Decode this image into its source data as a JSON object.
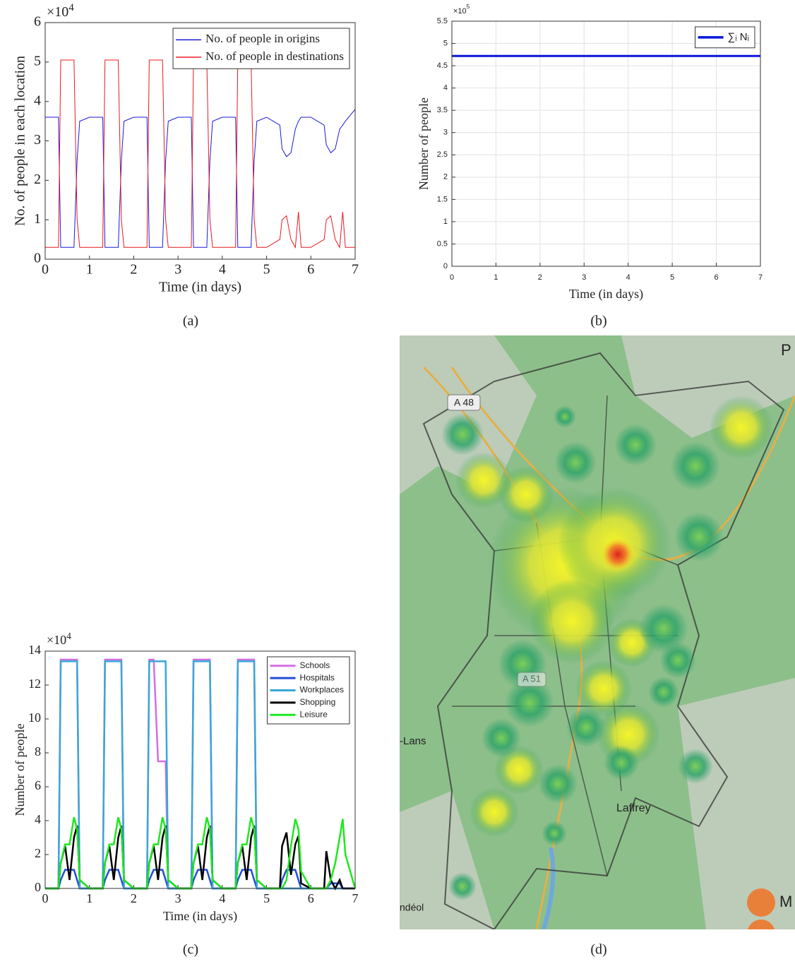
{
  "chart_data": [
    {
      "type": "line",
      "ylabel": "No. of people in each location",
      "xlabel": "Time (in days)",
      "y_multiplier": "×10",
      "y_exponent": "4",
      "legend": "top-right",
      "grid": false,
      "font": "serif",
      "x": [
        0,
        0.3,
        0.35,
        0.45,
        0.55,
        0.65,
        0.72,
        0.78,
        1,
        1.3,
        1.35,
        1.45,
        1.55,
        1.65,
        1.72,
        1.78,
        2,
        2.3,
        2.35,
        2.45,
        2.55,
        2.65,
        2.72,
        2.78,
        3,
        3.3,
        3.35,
        3.45,
        3.55,
        3.65,
        3.72,
        3.78,
        4,
        4.3,
        4.35,
        4.45,
        4.55,
        4.65,
        4.72,
        4.78,
        5,
        5.3,
        5.35,
        5.45,
        5.55,
        5.65,
        5.72,
        5.78,
        6,
        6.3,
        6.35,
        6.45,
        6.55,
        6.65,
        6.72,
        6.78,
        7
      ],
      "xlim": [
        0,
        7
      ],
      "ylim": [
        0,
        6
      ],
      "xticks": [
        0,
        1,
        2,
        3,
        4,
        5,
        6,
        7
      ],
      "yticks": [
        0,
        1,
        2,
        3,
        4,
        5,
        6
      ],
      "series": [
        {
          "name": "No. of people in origins",
          "color": "#1a1adf",
          "values": [
            3.6,
            3.6,
            0.3,
            0.3,
            0.3,
            0.3,
            2.5,
            3.5,
            3.6,
            3.6,
            0.3,
            0.3,
            0.3,
            0.3,
            2.5,
            3.5,
            3.6,
            3.6,
            0.3,
            0.3,
            0.3,
            0.3,
            2.5,
            3.5,
            3.6,
            3.6,
            0.3,
            0.3,
            0.3,
            0.3,
            2.5,
            3.5,
            3.6,
            3.6,
            0.3,
            0.3,
            0.3,
            0.3,
            2.5,
            3.5,
            3.6,
            3.4,
            2.8,
            2.6,
            2.7,
            3.3,
            3.5,
            3.6,
            3.6,
            3.4,
            2.9,
            2.7,
            2.8,
            3.3,
            3.4,
            3.5,
            3.8
          ]
        },
        {
          "name": "No. of people in destinations",
          "color": "#e8191f",
          "values": [
            0.3,
            0.3,
            5.05,
            5.05,
            5.05,
            5.05,
            1.0,
            0.3,
            0.3,
            0.3,
            5.05,
            5.05,
            5.05,
            5.05,
            1.0,
            0.3,
            0.3,
            0.3,
            5.05,
            5.05,
            5.05,
            5.05,
            1.0,
            0.3,
            0.3,
            0.3,
            5.05,
            5.05,
            5.05,
            5.05,
            1.0,
            0.3,
            0.3,
            0.3,
            5.05,
            5.05,
            5.05,
            5.05,
            1.0,
            0.3,
            0.3,
            0.5,
            1.0,
            1.1,
            0.5,
            0.3,
            1.2,
            0.3,
            0.3,
            0.5,
            1.0,
            1.1,
            0.5,
            0.3,
            1.2,
            0.3,
            0.3
          ]
        }
      ]
    },
    {
      "type": "line",
      "ylabel": "Number of people",
      "xlabel": "Time (in days)",
      "y_multiplier": "×10",
      "y_exponent": "5",
      "legend": "top-right",
      "grid": true,
      "font": "sans",
      "x": [
        0,
        7
      ],
      "xlim": [
        0,
        7
      ],
      "ylim": [
        0,
        5.5
      ],
      "xticks": [
        0,
        1,
        2,
        3,
        4,
        5,
        6,
        7
      ],
      "yticks": [
        0,
        0.5,
        1,
        1.5,
        2,
        2.5,
        3,
        3.5,
        4,
        4.5,
        5,
        5.5
      ],
      "series": [
        {
          "name": "∑ᵢ Nᵢ",
          "color": "#0b16d8",
          "values": [
            4.72,
            4.72
          ]
        }
      ]
    },
    {
      "type": "line",
      "ylabel": "Number of people",
      "xlabel": "Time (in days)",
      "y_multiplier": "×10",
      "y_exponent": "4",
      "legend": "top-right",
      "grid": false,
      "font": "serif",
      "x": [
        0,
        0.3,
        0.35,
        0.45,
        0.55,
        0.65,
        0.72,
        0.78,
        1,
        1.3,
        1.35,
        1.45,
        1.55,
        1.65,
        1.72,
        1.78,
        2,
        2.3,
        2.35,
        2.45,
        2.55,
        2.65,
        2.72,
        2.78,
        3,
        3.3,
        3.35,
        3.45,
        3.55,
        3.65,
        3.72,
        3.78,
        4,
        4.3,
        4.35,
        4.45,
        4.55,
        4.65,
        4.72,
        4.78,
        5,
        5.3,
        5.35,
        5.45,
        5.55,
        5.65,
        5.72,
        5.78,
        6,
        6.3,
        6.35,
        6.45,
        6.55,
        6.65,
        6.72,
        6.78,
        7
      ],
      "xlim": [
        0,
        7
      ],
      "ylim": [
        0,
        14
      ],
      "xticks": [
        0,
        1,
        2,
        3,
        4,
        5,
        6,
        7
      ],
      "yticks": [
        0,
        2,
        4,
        6,
        8,
        10,
        12,
        14
      ],
      "series": [
        {
          "name": "Schools",
          "color": "#d36fe0",
          "values": [
            0,
            0,
            13.5,
            13.5,
            13.5,
            13.5,
            13.5,
            0,
            0,
            0,
            13.5,
            13.5,
            13.5,
            13.5,
            13.5,
            0,
            0,
            0,
            13.5,
            13.5,
            7.5,
            7.5,
            7.5,
            0,
            0,
            0,
            13.5,
            13.5,
            13.5,
            13.5,
            13.5,
            0,
            0,
            0,
            13.5,
            13.5,
            13.5,
            13.5,
            13.5,
            0,
            0,
            0,
            0,
            0,
            0,
            0,
            0,
            0,
            0,
            0,
            0,
            0,
            0,
            0,
            0,
            0,
            0
          ]
        },
        {
          "name": "Hospitals",
          "color": "#1f4fd8",
          "values": [
            0,
            0,
            0.5,
            1.1,
            1.1,
            1.1,
            0.5,
            0,
            0,
            0,
            0.5,
            1.1,
            1.1,
            1.1,
            0.5,
            0,
            0,
            0,
            0.5,
            1.1,
            1.1,
            1.1,
            0.5,
            0,
            0,
            0,
            0.5,
            1.1,
            1.1,
            1.1,
            0.5,
            0,
            0,
            0,
            0.5,
            1.1,
            1.1,
            1.1,
            0.5,
            0,
            0,
            0,
            0.5,
            1.1,
            1.1,
            1.1,
            0.5,
            0,
            0,
            0,
            0,
            0.3,
            0.3,
            0.3,
            0,
            0,
            0
          ]
        },
        {
          "name": "Workplaces",
          "color": "#3aa6d6",
          "values": [
            0,
            0,
            13.4,
            13.4,
            13.4,
            13.4,
            13.4,
            0,
            0,
            0,
            13.4,
            13.4,
            13.4,
            13.4,
            13.4,
            0,
            0,
            0,
            13.4,
            13.4,
            13.4,
            13.4,
            13.4,
            0,
            0,
            0,
            13.4,
            13.4,
            13.4,
            13.4,
            13.4,
            0,
            0,
            0,
            13.4,
            13.4,
            13.4,
            13.4,
            13.4,
            0,
            0,
            0,
            0,
            0,
            0,
            0,
            0,
            0,
            0,
            0,
            0,
            0,
            0,
            0,
            0,
            0,
            0
          ]
        },
        {
          "name": "Shopping",
          "color": "#000000",
          "values": [
            0,
            0,
            1.5,
            2.5,
            0.5,
            3.0,
            3.7,
            0.5,
            0,
            0,
            1.5,
            2.5,
            0.5,
            3.0,
            3.7,
            0.5,
            0,
            0,
            1.5,
            2.5,
            0.5,
            3.0,
            3.7,
            0.5,
            0,
            0,
            1.5,
            2.5,
            0.5,
            3.0,
            3.7,
            0.5,
            0,
            0,
            1.5,
            2.5,
            0.5,
            3.0,
            3.7,
            0.5,
            0,
            0,
            2.5,
            3.3,
            0.8,
            2.6,
            3.1,
            0.3,
            0,
            0,
            2.2,
            0.5,
            0,
            0.5,
            0,
            0,
            0
          ]
        },
        {
          "name": "Leisure",
          "color": "#1ee81e",
          "values": [
            0,
            0,
            1.5,
            2.6,
            2.6,
            4.2,
            3.5,
            0.5,
            0,
            0,
            1.5,
            2.6,
            2.6,
            4.2,
            3.5,
            0.5,
            0,
            0,
            1.5,
            2.6,
            2.6,
            4.2,
            3.5,
            0.5,
            0,
            0,
            1.5,
            2.6,
            2.6,
            4.2,
            3.5,
            0.5,
            0,
            0,
            1.5,
            2.6,
            2.6,
            4.2,
            3.5,
            0.5,
            0,
            0,
            0,
            0.5,
            2.5,
            4.1,
            3.5,
            1.0,
            0,
            0,
            0,
            0.5,
            1.5,
            3.0,
            4.1,
            2.0,
            0
          ]
        }
      ]
    }
  ],
  "captions": [
    "(a)",
    "(b)",
    "(c)",
    "(d)"
  ],
  "map": {
    "labels": [
      "A 48",
      "A 51",
      "-Lans",
      "Laffrey",
      "ndéol",
      "P",
      "M"
    ]
  }
}
